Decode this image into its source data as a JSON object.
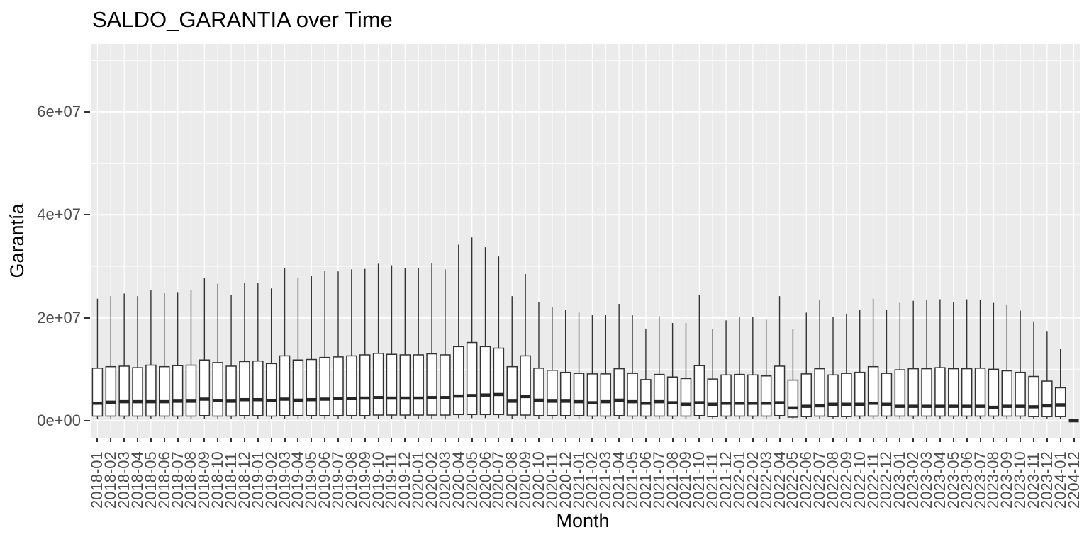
{
  "styles": {
    "panel_bg": "#EBEBEB",
    "gridline": "#FFFFFF",
    "box_stroke": "#333333",
    "box_fill": "#FFFFFF",
    "median_color": "#262626",
    "tick_mark_color": "#333333",
    "tick_label_color": "#4D4D4D",
    "title_color": "#000000"
  },
  "chart_data": {
    "type": "boxplot",
    "title": "SALDO_GARANTIA over Time",
    "xlabel": "Month",
    "ylabel": "Garantía",
    "legend_position": "none",
    "grid": true,
    "ylim": [
      -3300000,
      73200000
    ],
    "y_ticks": [
      {
        "label": "0e+00",
        "value": 0
      },
      {
        "label": "2e+07",
        "value": 20000000
      },
      {
        "label": "4e+07",
        "value": 40000000
      },
      {
        "label": "6e+07",
        "value": 60000000
      }
    ],
    "y_minor_gridlines": [
      10000000,
      30000000,
      50000000,
      70000000
    ],
    "series_name": "SALDO_GARANTIA",
    "boxes": [
      {
        "month": "2018-01",
        "min": 400000,
        "q1": 900000,
        "median": 3400000,
        "q3": 10200000,
        "max": 23700000
      },
      {
        "month": "2018-02",
        "min": 400000,
        "q1": 900000,
        "median": 3600000,
        "q3": 10500000,
        "max": 24200000
      },
      {
        "month": "2018-03",
        "min": 400000,
        "q1": 900000,
        "median": 3700000,
        "q3": 10600000,
        "max": 24700000
      },
      {
        "month": "2018-04",
        "min": 400000,
        "q1": 900000,
        "median": 3700000,
        "q3": 10300000,
        "max": 24200000
      },
      {
        "month": "2018-05",
        "min": 400000,
        "q1": 900000,
        "median": 3700000,
        "q3": 10800000,
        "max": 25400000
      },
      {
        "month": "2018-06",
        "min": 400000,
        "q1": 900000,
        "median": 3700000,
        "q3": 10500000,
        "max": 24800000
      },
      {
        "month": "2018-07",
        "min": 400000,
        "q1": 900000,
        "median": 3800000,
        "q3": 10700000,
        "max": 25000000
      },
      {
        "month": "2018-08",
        "min": 400000,
        "q1": 900000,
        "median": 3800000,
        "q3": 10800000,
        "max": 25400000
      },
      {
        "month": "2018-09",
        "min": 400000,
        "q1": 1000000,
        "median": 4200000,
        "q3": 11800000,
        "max": 27700000
      },
      {
        "month": "2018-10",
        "min": 400000,
        "q1": 900000,
        "median": 3900000,
        "q3": 11300000,
        "max": 26600000
      },
      {
        "month": "2018-11",
        "min": 400000,
        "q1": 900000,
        "median": 3800000,
        "q3": 10600000,
        "max": 24500000
      },
      {
        "month": "2018-12",
        "min": 400000,
        "q1": 1000000,
        "median": 4100000,
        "q3": 11500000,
        "max": 26700000
      },
      {
        "month": "2019-01",
        "min": 400000,
        "q1": 1000000,
        "median": 4100000,
        "q3": 11600000,
        "max": 26800000
      },
      {
        "month": "2019-02",
        "min": 400000,
        "q1": 900000,
        "median": 3900000,
        "q3": 11100000,
        "max": 25700000
      },
      {
        "month": "2019-03",
        "min": 400000,
        "q1": 1000000,
        "median": 4200000,
        "q3": 12600000,
        "max": 29700000
      },
      {
        "month": "2019-04",
        "min": 400000,
        "q1": 1000000,
        "median": 4000000,
        "q3": 11800000,
        "max": 27800000
      },
      {
        "month": "2019-05",
        "min": 400000,
        "q1": 1000000,
        "median": 4100000,
        "q3": 11900000,
        "max": 28100000
      },
      {
        "month": "2019-06",
        "min": 400000,
        "q1": 1000000,
        "median": 4200000,
        "q3": 12300000,
        "max": 29100000
      },
      {
        "month": "2019-07",
        "min": 400000,
        "q1": 1000000,
        "median": 4300000,
        "q3": 12400000,
        "max": 29000000
      },
      {
        "month": "2019-08",
        "min": 400000,
        "q1": 1000000,
        "median": 4300000,
        "q3": 12600000,
        "max": 29400000
      },
      {
        "month": "2019-09",
        "min": 400000,
        "q1": 1000000,
        "median": 4400000,
        "q3": 12800000,
        "max": 29500000
      },
      {
        "month": "2019-10",
        "min": 400000,
        "q1": 1100000,
        "median": 4500000,
        "q3": 13100000,
        "max": 30500000
      },
      {
        "month": "2019-11",
        "min": 400000,
        "q1": 1100000,
        "median": 4400000,
        "q3": 12900000,
        "max": 30200000
      },
      {
        "month": "2019-12",
        "min": 400000,
        "q1": 1100000,
        "median": 4400000,
        "q3": 12800000,
        "max": 29700000
      },
      {
        "month": "2020-01",
        "min": 400000,
        "q1": 1100000,
        "median": 4400000,
        "q3": 12800000,
        "max": 29700000
      },
      {
        "month": "2020-02",
        "min": 400000,
        "q1": 1100000,
        "median": 4500000,
        "q3": 13000000,
        "max": 30600000
      },
      {
        "month": "2020-03",
        "min": 400000,
        "q1": 1100000,
        "median": 4500000,
        "q3": 12800000,
        "max": 29400000
      },
      {
        "month": "2020-04",
        "min": 500000,
        "q1": 1200000,
        "median": 4800000,
        "q3": 14400000,
        "max": 34200000
      },
      {
        "month": "2020-05",
        "min": 500000,
        "q1": 1200000,
        "median": 4900000,
        "q3": 15200000,
        "max": 35600000
      },
      {
        "month": "2020-06",
        "min": 500000,
        "q1": 1200000,
        "median": 5000000,
        "q3": 14400000,
        "max": 33700000
      },
      {
        "month": "2020-07",
        "min": 500000,
        "q1": 1200000,
        "median": 5100000,
        "q3": 14100000,
        "max": 31900000
      },
      {
        "month": "2020-08",
        "min": 400000,
        "q1": 1100000,
        "median": 3800000,
        "q3": 10500000,
        "max": 24200000
      },
      {
        "month": "2020-09",
        "min": 400000,
        "q1": 1100000,
        "median": 4700000,
        "q3": 12600000,
        "max": 28500000
      },
      {
        "month": "2020-10",
        "min": 400000,
        "q1": 1000000,
        "median": 4000000,
        "q3": 10200000,
        "max": 23100000
      },
      {
        "month": "2020-11",
        "min": 400000,
        "q1": 1000000,
        "median": 3800000,
        "q3": 9800000,
        "max": 22100000
      },
      {
        "month": "2020-12",
        "min": 400000,
        "q1": 1000000,
        "median": 3800000,
        "q3": 9400000,
        "max": 21500000
      },
      {
        "month": "2021-01",
        "min": 400000,
        "q1": 1000000,
        "median": 3700000,
        "q3": 9200000,
        "max": 21000000
      },
      {
        "month": "2021-02",
        "min": 400000,
        "q1": 900000,
        "median": 3500000,
        "q3": 9100000,
        "max": 20500000
      },
      {
        "month": "2021-03",
        "min": 400000,
        "q1": 900000,
        "median": 3700000,
        "q3": 9100000,
        "max": 20500000
      },
      {
        "month": "2021-04",
        "min": 400000,
        "q1": 1000000,
        "median": 4000000,
        "q3": 10100000,
        "max": 22700000
      },
      {
        "month": "2021-05",
        "min": 400000,
        "q1": 900000,
        "median": 3700000,
        "q3": 9200000,
        "max": 20500000
      },
      {
        "month": "2021-06",
        "min": 400000,
        "q1": 900000,
        "median": 3400000,
        "q3": 8000000,
        "max": 17900000
      },
      {
        "month": "2021-07",
        "min": 400000,
        "q1": 900000,
        "median": 3700000,
        "q3": 9000000,
        "max": 20300000
      },
      {
        "month": "2021-08",
        "min": 400000,
        "q1": 900000,
        "median": 3500000,
        "q3": 8500000,
        "max": 19000000
      },
      {
        "month": "2021-09",
        "min": 400000,
        "q1": 900000,
        "median": 3200000,
        "q3": 8200000,
        "max": 19000000
      },
      {
        "month": "2021-10",
        "min": 400000,
        "q1": 1000000,
        "median": 3500000,
        "q3": 10700000,
        "max": 24500000
      },
      {
        "month": "2021-11",
        "min": 400000,
        "q1": 800000,
        "median": 3200000,
        "q3": 8100000,
        "max": 17800000
      },
      {
        "month": "2021-12",
        "min": 400000,
        "q1": 900000,
        "median": 3400000,
        "q3": 8900000,
        "max": 19500000
      },
      {
        "month": "2022-01",
        "min": 400000,
        "q1": 900000,
        "median": 3400000,
        "q3": 9000000,
        "max": 20100000
      },
      {
        "month": "2022-02",
        "min": 400000,
        "q1": 900000,
        "median": 3400000,
        "q3": 8900000,
        "max": 20200000
      },
      {
        "month": "2022-03",
        "min": 400000,
        "q1": 900000,
        "median": 3400000,
        "q3": 8700000,
        "max": 19600000
      },
      {
        "month": "2022-04",
        "min": 400000,
        "q1": 1000000,
        "median": 3500000,
        "q3": 10600000,
        "max": 24200000
      },
      {
        "month": "2022-05",
        "min": 400000,
        "q1": 700000,
        "median": 2500000,
        "q3": 7900000,
        "max": 17800000
      },
      {
        "month": "2022-06",
        "min": 400000,
        "q1": 800000,
        "median": 2800000,
        "q3": 9100000,
        "max": 21000000
      },
      {
        "month": "2022-07",
        "min": 400000,
        "q1": 900000,
        "median": 2900000,
        "q3": 10100000,
        "max": 23400000
      },
      {
        "month": "2022-08",
        "min": 400000,
        "q1": 800000,
        "median": 3200000,
        "q3": 8900000,
        "max": 20100000
      },
      {
        "month": "2022-09",
        "min": 400000,
        "q1": 800000,
        "median": 3200000,
        "q3": 9200000,
        "max": 20800000
      },
      {
        "month": "2022-10",
        "min": 400000,
        "q1": 900000,
        "median": 3200000,
        "q3": 9400000,
        "max": 21500000
      },
      {
        "month": "2022-11",
        "min": 400000,
        "q1": 900000,
        "median": 3400000,
        "q3": 10500000,
        "max": 23700000
      },
      {
        "month": "2022-12",
        "min": 400000,
        "q1": 900000,
        "median": 3200000,
        "q3": 9200000,
        "max": 21500000
      },
      {
        "month": "2023-01",
        "min": 400000,
        "q1": 900000,
        "median": 2800000,
        "q3": 9900000,
        "max": 22900000
      },
      {
        "month": "2023-02",
        "min": 400000,
        "q1": 900000,
        "median": 2800000,
        "q3": 10100000,
        "max": 23300000
      },
      {
        "month": "2023-03",
        "min": 400000,
        "q1": 900000,
        "median": 2800000,
        "q3": 10100000,
        "max": 23400000
      },
      {
        "month": "2023-04",
        "min": 400000,
        "q1": 900000,
        "median": 2800000,
        "q3": 10300000,
        "max": 23600000
      },
      {
        "month": "2023-05",
        "min": 400000,
        "q1": 900000,
        "median": 2800000,
        "q3": 10100000,
        "max": 23100000
      },
      {
        "month": "2023-06",
        "min": 400000,
        "q1": 900000,
        "median": 2800000,
        "q3": 10100000,
        "max": 23600000
      },
      {
        "month": "2023-07",
        "min": 400000,
        "q1": 900000,
        "median": 2800000,
        "q3": 10200000,
        "max": 23500000
      },
      {
        "month": "2023-08",
        "min": 400000,
        "q1": 900000,
        "median": 2600000,
        "q3": 10000000,
        "max": 22900000
      },
      {
        "month": "2023-09",
        "min": 400000,
        "q1": 900000,
        "median": 2800000,
        "q3": 9700000,
        "max": 22600000
      },
      {
        "month": "2023-10",
        "min": 400000,
        "q1": 900000,
        "median": 2800000,
        "q3": 9400000,
        "max": 21400000
      },
      {
        "month": "2023-11",
        "min": 400000,
        "q1": 800000,
        "median": 2700000,
        "q3": 8600000,
        "max": 19300000
      },
      {
        "month": "2023-12",
        "min": 400000,
        "q1": 800000,
        "median": 2900000,
        "q3": 7700000,
        "max": 17300000
      },
      {
        "month": "2024-01",
        "min": 400000,
        "q1": 800000,
        "median": 3100000,
        "q3": 6400000,
        "max": 13900000
      },
      {
        "month": "2204-12",
        "min": 0,
        "q1": 0,
        "median": 0,
        "q3": 0,
        "max": 0
      }
    ]
  }
}
